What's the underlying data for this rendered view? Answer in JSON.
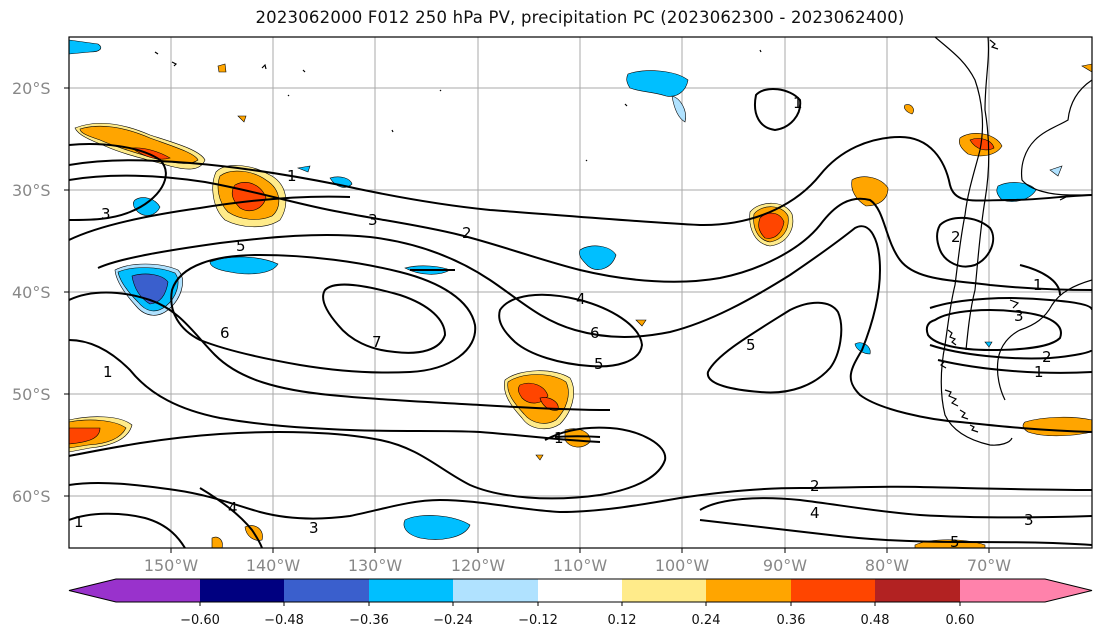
{
  "title": "2023062000 F012 250 hPa PV, precipitation PC (2023062300 - 2023062400)",
  "lat_labels": [
    "20°S",
    "30°S",
    "40°S",
    "50°S",
    "60°S"
  ],
  "lon_labels": [
    "150°W",
    "140°W",
    "130°W",
    "120°W",
    "110°W",
    "100°W",
    "90°W",
    "80°W",
    "70°W"
  ],
  "colorbar": {
    "tick_labels": [
      "−0.60",
      "−0.48",
      "−0.36",
      "−0.24",
      "−0.12",
      "0.12",
      "0.24",
      "0.36",
      "0.48",
      "0.60"
    ],
    "colors": [
      "#9932cc",
      "#000080",
      "#3a5fcd",
      "#00bfff",
      "#b0e2ff",
      "#ffffff",
      "#ffeb8a",
      "#ffa500",
      "#ff4500",
      "#b22222",
      "#ff82ab"
    ]
  },
  "contour_labels": [
    "1",
    "3",
    "3",
    "2",
    "5",
    "6",
    "7",
    "4",
    "6",
    "5",
    "5",
    "1",
    "2",
    "4",
    "3",
    "1",
    "2",
    "3",
    "2",
    "1",
    "1",
    "5",
    "1"
  ],
  "colors": {
    "blue": "#00bfff",
    "orange": "#ffa500",
    "red": "#ff4500",
    "navy": "#3a5fcd",
    "lightblue": "#b0e2ff",
    "yellow": "#ffeb8a"
  }
}
